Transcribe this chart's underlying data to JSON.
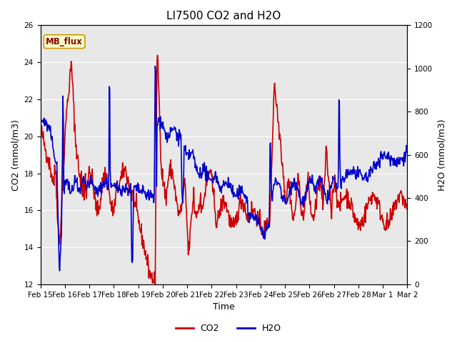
{
  "title": "LI7500 CO2 and H2O",
  "xlabel": "Time",
  "ylabel_left": "CO2 (mmol/m3)",
  "ylabel_right": "H2O (mmol/m3)",
  "ylim_left": [
    12,
    26
  ],
  "ylim_right": [
    0,
    1200
  ],
  "yticks_left": [
    12,
    14,
    16,
    18,
    20,
    22,
    24,
    26
  ],
  "yticks_right": [
    0,
    200,
    400,
    600,
    800,
    1000,
    1200
  ],
  "xtick_labels": [
    "Feb 15",
    "Feb 16",
    "Feb 17",
    "Feb 18",
    "Feb 19",
    "Feb 20",
    "Feb 21",
    "Feb 22",
    "Feb 23",
    "Feb 24",
    "Feb 25",
    "Feb 26",
    "Feb 27",
    "Feb 28",
    "Mar 1",
    "Mar 2"
  ],
  "co2_color": "#cc0000",
  "h2o_color": "#0000cc",
  "background_color": "#ffffff",
  "plot_bg_color": "#e8e8e8",
  "annotation_text": "MB_flux",
  "annotation_bg": "#ffffcc",
  "annotation_border": "#cc9900",
  "legend_co2": "CO2",
  "legend_h2o": "H2O",
  "title_fontsize": 11,
  "axis_fontsize": 9,
  "tick_fontsize": 7.5,
  "line_width": 1.2
}
